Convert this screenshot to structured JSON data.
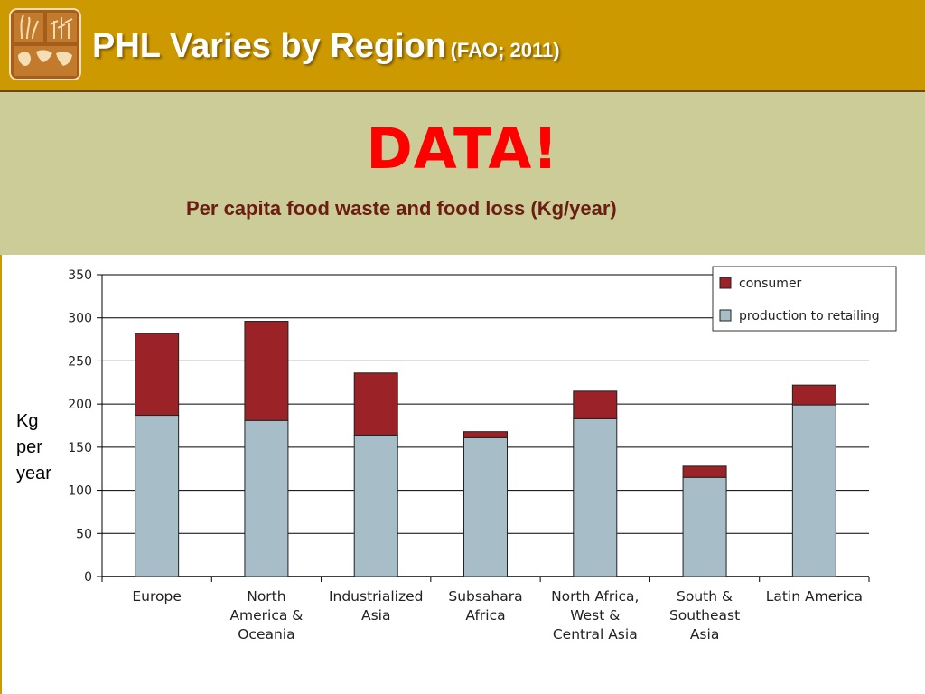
{
  "header": {
    "title": "PHL Varies by Region",
    "source": "(FAO; 2011)",
    "logo_icon": "agriculture-world-map-icon"
  },
  "slide": {
    "headline": "DATA!",
    "subtitle": "Per capita food waste and food loss (Kg/year)",
    "y_side_label": [
      "Kg",
      "per",
      "year"
    ]
  },
  "colors": {
    "header_bg": "#cc9900",
    "band_bg": "#cccc99",
    "headline": "#ff0000",
    "subtitle": "#6b1d12",
    "consumer": "#9b2226",
    "production": "#a7bdc8"
  },
  "chart_data": {
    "type": "bar",
    "stacked": true,
    "title": "",
    "xlabel": "",
    "ylabel": "Kg per year",
    "ylim": [
      0,
      350
    ],
    "yticks": [
      0,
      50,
      100,
      150,
      200,
      250,
      300,
      350
    ],
    "grid": true,
    "legend_position": "top-right",
    "categories": [
      [
        "Europe"
      ],
      [
        "North",
        "America &",
        "Oceania"
      ],
      [
        "Industrialized",
        "Asia"
      ],
      [
        "Subsahara",
        "Africa"
      ],
      [
        "North Africa,",
        "West &",
        "Central Asia"
      ],
      [
        "South &",
        "Southeast",
        "Asia"
      ],
      [
        "Latin America"
      ]
    ],
    "series": [
      {
        "name": "production to retailing",
        "color": "#a7bdc8",
        "values": [
          187,
          181,
          164,
          161,
          183,
          115,
          199
        ]
      },
      {
        "name": "consumer",
        "color": "#9b2226",
        "values": [
          95,
          115,
          72,
          7,
          32,
          13,
          23
        ]
      }
    ],
    "legend_order": [
      "consumer",
      "production to retailing"
    ]
  }
}
